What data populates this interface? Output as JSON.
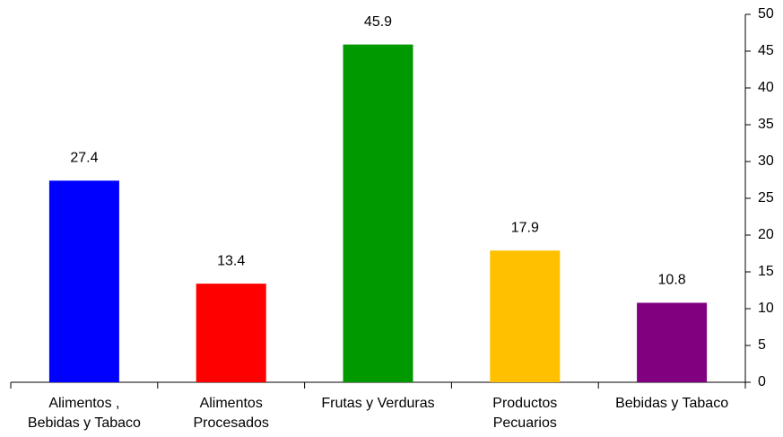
{
  "chart_data": {
    "type": "bar",
    "categories": [
      [
        "Alimentos ,",
        "Bebidas y Tabaco"
      ],
      [
        "Alimentos",
        "Procesados"
      ],
      [
        "Frutas y Verduras"
      ],
      [
        "Productos",
        "Pecuarios"
      ],
      [
        "Bebidas y Tabaco"
      ]
    ],
    "values": [
      27.4,
      13.4,
      45.9,
      17.9,
      10.8
    ],
    "colors": [
      "#0000ff",
      "#ff0000",
      "#009900",
      "#ffc000",
      "#800080"
    ],
    "ylim": [
      0,
      50
    ],
    "yticks": [
      0,
      5,
      10,
      15,
      20,
      25,
      30,
      35,
      40,
      45,
      50
    ],
    "y_axis_side": "right",
    "data_labels": true
  }
}
